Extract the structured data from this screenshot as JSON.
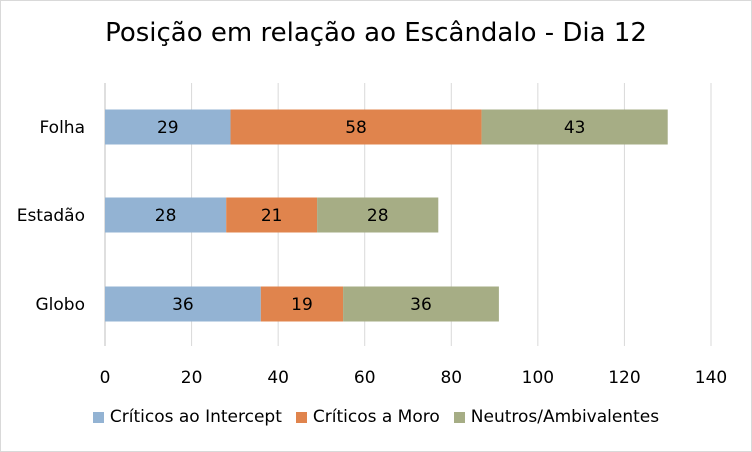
{
  "chart_data": {
    "type": "bar",
    "orientation": "horizontal",
    "stacked": true,
    "title": "Posição em relação ao Escândalo - Dia 12",
    "categories": [
      "Folha",
      "Estadão",
      "Globo"
    ],
    "series": [
      {
        "name": "Críticos ao Intercept",
        "values": [
          29,
          28,
          36
        ],
        "color": "#93b3d3"
      },
      {
        "name": "Críticos a Moro",
        "values": [
          58,
          21,
          19
        ],
        "color": "#e0844d"
      },
      {
        "name": "Neutros/Ambivalentes",
        "values": [
          43,
          28,
          36
        ],
        "color": "#a6ad85"
      }
    ],
    "xlim": [
      0,
      140
    ],
    "xticks": [
      0,
      20,
      40,
      60,
      80,
      100,
      120,
      140
    ],
    "grid": "vertical",
    "legend": "bottom",
    "data_labels": true
  }
}
